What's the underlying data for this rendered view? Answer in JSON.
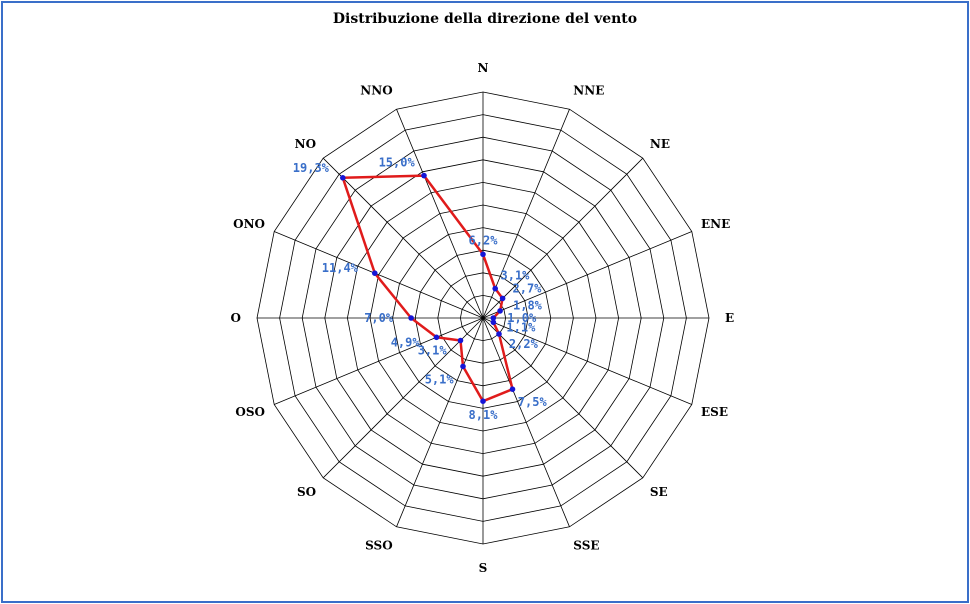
{
  "chart_data": {
    "type": "radar",
    "title": "Distribuzione della direzione del vento",
    "directions": [
      "N",
      "NNE",
      "NE",
      "ENE",
      "E",
      "ESE",
      "SE",
      "SSE",
      "S",
      "SSO",
      "SO",
      "OSO",
      "O",
      "ONO",
      "NO",
      "NNO"
    ],
    "values": [
      6.2,
      3.1,
      2.7,
      1.8,
      1.0,
      1.1,
      2.2,
      7.5,
      8.1,
      5.1,
      3.1,
      4.9,
      7.0,
      11.4,
      19.3,
      15.0
    ],
    "value_labels": [
      "6,2%",
      "3,1%",
      "2,7%",
      "1,8%",
      "1,0%",
      "1,1%",
      "2,2%",
      "7,5%",
      "8,1%",
      "5,1%",
      "3,1%",
      "4,9%",
      "7,0%",
      "11,4%",
      "19,3%",
      "15,0%"
    ],
    "rings": 10,
    "rlim": [
      0,
      22
    ],
    "series_color": "#e01b1b",
    "marker_color": "#1515d6",
    "label_color": "#3a6fc9",
    "grid_color": "#000000"
  }
}
